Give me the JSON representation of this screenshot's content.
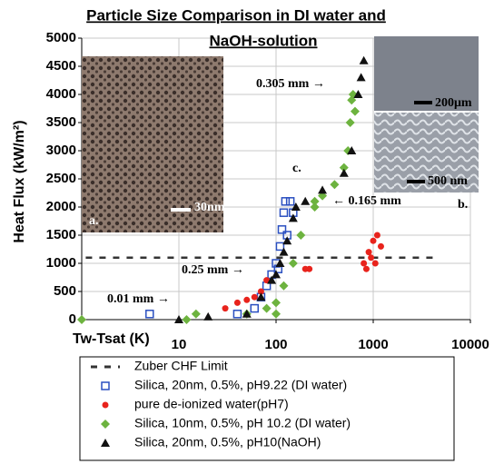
{
  "chart_data": {
    "type": "scatter",
    "title": [
      "Particle Size Comparison in DI water and",
      "NaOH-solution"
    ],
    "x_label": "Tw-Tsat (K)",
    "y_label": "Heat Flux (kW/m²)",
    "x_scale": "log",
    "xlim": [
      1,
      10000
    ],
    "xticks": [
      10,
      100,
      1000,
      10000
    ],
    "ylim": [
      0,
      5000
    ],
    "yticks": [
      0,
      500,
      1000,
      1500,
      2000,
      2500,
      3000,
      3500,
      4000,
      4500,
      5000
    ],
    "grid": true,
    "series": [
      {
        "name": "Zuber CHF Limit",
        "color": "#333333",
        "marker": "dash",
        "x": [
          1.1,
          4500
        ],
        "values": [
          1100,
          1100
        ]
      },
      {
        "name": "Silica, 20nm, 0.5%, pH9.22 (DI water)",
        "color": "#2a4fc0",
        "marker": "square",
        "x": [
          5,
          40,
          60,
          70,
          80,
          90,
          100,
          105,
          110,
          115,
          120,
          125,
          130,
          140,
          150
        ],
        "values": [
          100,
          100,
          200,
          400,
          600,
          800,
          1000,
          900,
          1300,
          1600,
          1900,
          2100,
          1500,
          2100,
          1900
        ]
      },
      {
        "name": "pure de-ionized water(pH7)",
        "color": "#e8231c",
        "marker": "circle",
        "x": [
          30,
          40,
          50,
          60,
          70,
          80,
          200,
          220,
          800,
          850,
          900,
          950,
          1000,
          1050,
          1100,
          1200
        ],
        "values": [
          200,
          300,
          350,
          400,
          500,
          700,
          900,
          900,
          1000,
          900,
          1200,
          1100,
          1400,
          1000,
          1500,
          1300
        ]
      },
      {
        "name": "Silica, 10nm, 0.5%, pH 10.2 (DI water)",
        "color": "#6db33f",
        "marker": "diamond",
        "x": [
          1,
          12,
          15,
          50,
          80,
          100,
          100,
          120,
          150,
          180,
          250,
          250,
          300,
          400,
          500,
          550,
          580,
          600,
          620,
          650
        ],
        "values": [
          0,
          0,
          100,
          100,
          200,
          100,
          300,
          600,
          1000,
          1500,
          2000,
          2100,
          2200,
          2400,
          2700,
          3000,
          3500,
          3900,
          4000,
          3700
        ]
      },
      {
        "name": "Silica, 20nm, 0.5%, pH10(NaOH)",
        "color": "#111111",
        "marker": "triangle",
        "x": [
          10,
          20,
          50,
          70,
          90,
          100,
          110,
          120,
          130,
          150,
          160,
          200,
          300,
          500,
          600,
          700,
          750,
          800
        ],
        "values": [
          0,
          50,
          100,
          400,
          700,
          800,
          1000,
          1200,
          1400,
          1800,
          2000,
          2100,
          2300,
          2600,
          3000,
          4000,
          4300,
          4600
        ]
      }
    ],
    "annotations": [
      "0.305 mm →",
      "← 0.165 mm",
      "0.25 mm →",
      "0.01 mm →",
      "c.",
      "a.",
      "b.",
      "30nm",
      "200μm",
      "500 nm"
    ]
  }
}
